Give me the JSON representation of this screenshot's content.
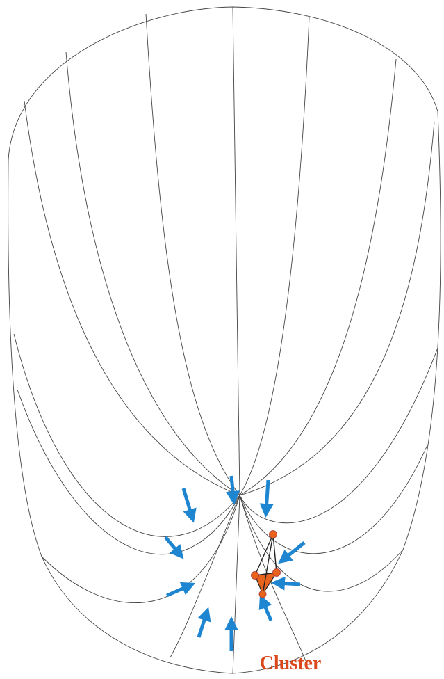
{
  "labels": {
    "cluster": "Cluster"
  }
}
